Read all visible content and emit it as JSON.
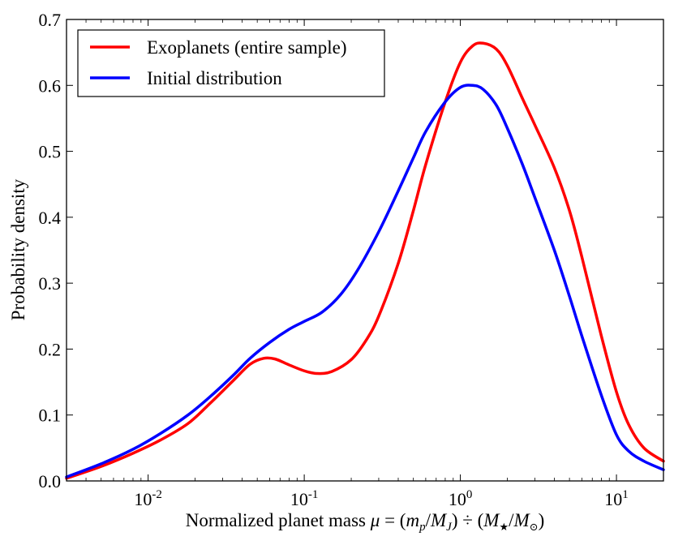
{
  "chart_data": {
    "type": "line",
    "title": "",
    "xlabel": "Normalized planet mass μ = (m_p/M_J) ÷ (M★/M⊙)",
    "ylabel": "Probability density",
    "xscale": "log",
    "xlim": [
      0.003,
      20
    ],
    "ylim": [
      0.0,
      0.7
    ],
    "grid": false,
    "legend_position": "top-left",
    "xlabel_parts": {
      "prefix": "Normalized planet mass ",
      "mu": "μ",
      "eq": " = (",
      "m": "m",
      "p": "p",
      "slash1": "/",
      "MJ": "M",
      "J": "J",
      "div": ") ÷ (",
      "Mstar": "M",
      "star": "★",
      "slash2": "/",
      "Msun": "M",
      "sun": "⊙",
      "close": ")"
    },
    "x_ticks": [
      {
        "value": 0.01,
        "base": "10",
        "exp": "-2"
      },
      {
        "value": 0.1,
        "base": "10",
        "exp": "-1"
      },
      {
        "value": 1,
        "base": "10",
        "exp": "0"
      },
      {
        "value": 10,
        "base": "10",
        "exp": "1"
      }
    ],
    "y_ticks": [
      "0.0",
      "0.1",
      "0.2",
      "0.3",
      "0.4",
      "0.5",
      "0.6",
      "0.7"
    ],
    "series": [
      {
        "name": "Exoplanets (entire sample)",
        "color": "#ff0000",
        "x": [
          0.003,
          0.005,
          0.008,
          0.012,
          0.018,
          0.025,
          0.035,
          0.045,
          0.055,
          0.065,
          0.08,
          0.1,
          0.12,
          0.15,
          0.2,
          0.25,
          0.3,
          0.4,
          0.5,
          0.6,
          0.8,
          1.0,
          1.2,
          1.4,
          1.7,
          2.0,
          2.5,
          3.0,
          4.0,
          5.0,
          6.0,
          8.0,
          10.0,
          12.0,
          15.0,
          20.0
        ],
        "y": [
          0.004,
          0.022,
          0.042,
          0.062,
          0.087,
          0.118,
          0.152,
          0.177,
          0.186,
          0.185,
          0.176,
          0.167,
          0.163,
          0.166,
          0.184,
          0.214,
          0.25,
          0.33,
          0.41,
          0.48,
          0.575,
          0.635,
          0.66,
          0.664,
          0.655,
          0.63,
          0.58,
          0.54,
          0.475,
          0.41,
          0.34,
          0.22,
          0.135,
          0.085,
          0.05,
          0.03
        ]
      },
      {
        "name": "Initial distribution",
        "color": "#0000ff",
        "x": [
          0.003,
          0.005,
          0.008,
          0.012,
          0.018,
          0.025,
          0.035,
          0.045,
          0.06,
          0.08,
          0.1,
          0.13,
          0.17,
          0.22,
          0.3,
          0.4,
          0.5,
          0.6,
          0.8,
          1.0,
          1.2,
          1.4,
          1.7,
          2.0,
          2.5,
          3.0,
          4.0,
          5.0,
          6.0,
          8.0,
          10.0,
          12.0,
          15.0,
          20.0
        ],
        "y": [
          0.006,
          0.026,
          0.048,
          0.072,
          0.1,
          0.128,
          0.16,
          0.186,
          0.21,
          0.23,
          0.242,
          0.256,
          0.282,
          0.32,
          0.378,
          0.44,
          0.49,
          0.53,
          0.575,
          0.597,
          0.6,
          0.594,
          0.57,
          0.535,
          0.48,
          0.43,
          0.35,
          0.28,
          0.22,
          0.13,
          0.07,
          0.045,
          0.03,
          0.017
        ]
      }
    ]
  }
}
